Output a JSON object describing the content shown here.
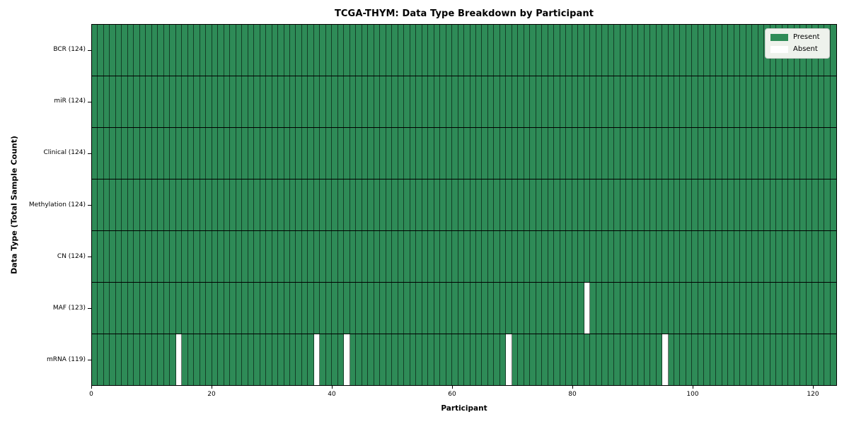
{
  "chart_data": {
    "type": "heatmap",
    "title": "TCGA-THYM: Data Type Breakdown by Participant",
    "xlabel": "Participant",
    "ylabel": "Data Type (Total Sample Count)",
    "x_range": [
      0,
      124
    ],
    "x_ticks": [
      0,
      20,
      40,
      60,
      80,
      100,
      120
    ],
    "n_participants": 124,
    "grid": "off",
    "rows": [
      {
        "label": "BCR (124)",
        "data_type": "BCR",
        "total_samples": 124,
        "absent_participants": []
      },
      {
        "label": "miR (124)",
        "data_type": "miR",
        "total_samples": 124,
        "absent_participants": []
      },
      {
        "label": "Clinical (124)",
        "data_type": "Clinical",
        "total_samples": 124,
        "absent_participants": []
      },
      {
        "label": "Methylation (124)",
        "data_type": "Methylation",
        "total_samples": 124,
        "absent_participants": []
      },
      {
        "label": "CN (124)",
        "data_type": "CN",
        "total_samples": 124,
        "absent_participants": []
      },
      {
        "label": "MAF (123)",
        "data_type": "MAF",
        "total_samples": 123,
        "absent_participants": [
          82
        ]
      },
      {
        "label": "mRNA (119)",
        "data_type": "mRNA",
        "total_samples": 119,
        "absent_participants": [
          14,
          37,
          42,
          69,
          95
        ]
      }
    ],
    "legend": {
      "position": "upper right",
      "items": [
        {
          "label": "Present",
          "color": "#2e8b57"
        },
        {
          "label": "Absent",
          "color": "#ffffff"
        }
      ]
    },
    "colors": {
      "present": "#2e8b57",
      "absent": "#ffffff",
      "cell_edge": "rgba(0,0,0,0.55)",
      "row_separator": "#000000",
      "background": "#ffffff"
    }
  }
}
